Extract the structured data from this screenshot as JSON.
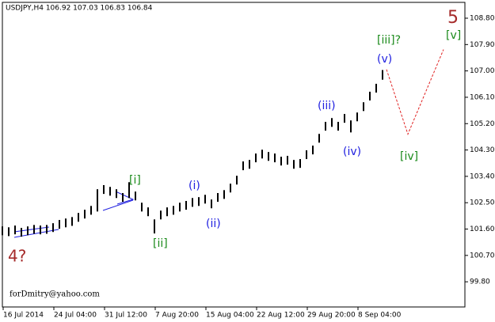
{
  "chart_data": {
    "type": "ohlc",
    "title": "USDJPY,H4  106.92 107.03 106.83 106.84",
    "watermark": "forDmitry@yahoo.com",
    "x": [
      0,
      4,
      8,
      12,
      16,
      20,
      24,
      28,
      32,
      36,
      40,
      44,
      48,
      52,
      56,
      60,
      64,
      68,
      72,
      76,
      80,
      84,
      88,
      92,
      96,
      100,
      104,
      108,
      112,
      116,
      120,
      124,
      128,
      132,
      136,
      140,
      144,
      148,
      152,
      156,
      160,
      164,
      168,
      172,
      176,
      180,
      184,
      188,
      192,
      196,
      200,
      204,
      208,
      212,
      216,
      220,
      224,
      228,
      232,
      236,
      240
    ],
    "high": [
      101.69,
      101.66,
      101.72,
      101.64,
      101.69,
      101.74,
      101.72,
      101.74,
      101.8,
      101.91,
      101.96,
      102.01,
      102.15,
      102.26,
      102.39,
      102.96,
      103.1,
      103.04,
      102.96,
      102.83,
      103.2,
      102.88,
      102.5,
      102.34,
      101.93,
      102.23,
      102.34,
      102.39,
      102.5,
      102.56,
      102.66,
      102.69,
      102.77,
      102.61,
      102.83,
      102.93,
      103.15,
      103.42,
      103.91,
      103.96,
      104.18,
      104.31,
      104.23,
      104.18,
      104.07,
      104.1,
      103.96,
      103.99,
      104.29,
      104.45,
      104.85,
      105.26,
      105.39,
      105.26,
      105.53,
      105.31,
      105.58,
      105.93,
      106.29,
      106.56,
      107.03
    ],
    "low": [
      101.39,
      101.36,
      101.42,
      101.34,
      101.39,
      101.44,
      101.42,
      101.44,
      101.5,
      101.61,
      101.66,
      101.71,
      101.85,
      101.96,
      102.09,
      102.2,
      102.8,
      102.74,
      102.66,
      102.53,
      102.66,
      102.58,
      102.2,
      102.04,
      101.45,
      101.93,
      102.04,
      102.09,
      102.2,
      102.26,
      102.36,
      102.39,
      102.47,
      102.31,
      102.53,
      102.63,
      102.85,
      103.12,
      103.61,
      103.66,
      103.88,
      104.01,
      103.93,
      103.88,
      103.77,
      103.8,
      103.66,
      103.69,
      103.99,
      104.15,
      104.55,
      104.96,
      105.09,
      104.96,
      105.23,
      104.9,
      105.28,
      105.63,
      105.99,
      106.26,
      106.7
    ],
    "color": "#000000",
    "forecast": {
      "x": [
        242.5,
        256,
        278.5
      ],
      "values": [
        107.05,
        104.84,
        107.73
      ],
      "color": "#e02020"
    },
    "xlim": [
      0,
      292
    ],
    "ylim": [
      98.94,
      109.34
    ],
    "xticks": [
      {
        "value": 0,
        "label": "16 Jul 2014"
      },
      {
        "value": 32,
        "label": "24 Jul 04:00"
      },
      {
        "value": 64,
        "label": "31 Jul 12:00"
      },
      {
        "value": 96,
        "label": "7 Aug 20:00"
      },
      {
        "value": 128,
        "label": "15 Aug 04:00"
      },
      {
        "value": 160,
        "label": "22 Aug 12:00"
      },
      {
        "value": 192,
        "label": "29 Aug 20:00"
      },
      {
        "value": 224,
        "label": "8 Sep 04:00"
      }
    ],
    "yticks": [
      {
        "value": 108.8,
        "label": "108.80"
      },
      {
        "value": 107.9,
        "label": "107.90"
      },
      {
        "value": 107,
        "label": "107.00"
      },
      {
        "value": 106.1,
        "label": "106.10"
      },
      {
        "value": 105.2,
        "label": "105.20"
      },
      {
        "value": 104.3,
        "label": "104.30"
      },
      {
        "value": 103.4,
        "label": "103.40"
      },
      {
        "value": 102.5,
        "label": "102.50"
      },
      {
        "value": 101.6,
        "label": "101.60"
      },
      {
        "value": 100.7,
        "label": "100.70"
      },
      {
        "value": 99.8,
        "label": "99.80"
      }
    ],
    "annotations": [
      {
        "text": "4?",
        "color": "#a52a2a"
      },
      {
        "text": "[i]",
        "color": "#1a8a1a"
      },
      {
        "text": "[ii]",
        "color": "#1a8a1a"
      },
      {
        "text": "(i)",
        "color": "#2020e0"
      },
      {
        "text": "(ii)",
        "color": "#2020e0"
      },
      {
        "text": "(iii)",
        "color": "#2020e0"
      },
      {
        "text": "(iv)",
        "color": "#2020e0"
      },
      {
        "text": "(v)",
        "color": "#2020e0"
      },
      {
        "text": "[iii]?",
        "color": "#1a8a1a"
      },
      {
        "text": "[iv]",
        "color": "#1a8a1a"
      },
      {
        "text": "[v]",
        "color": "#1a8a1a"
      },
      {
        "text": "5",
        "color": "#a52a2a"
      }
    ]
  }
}
